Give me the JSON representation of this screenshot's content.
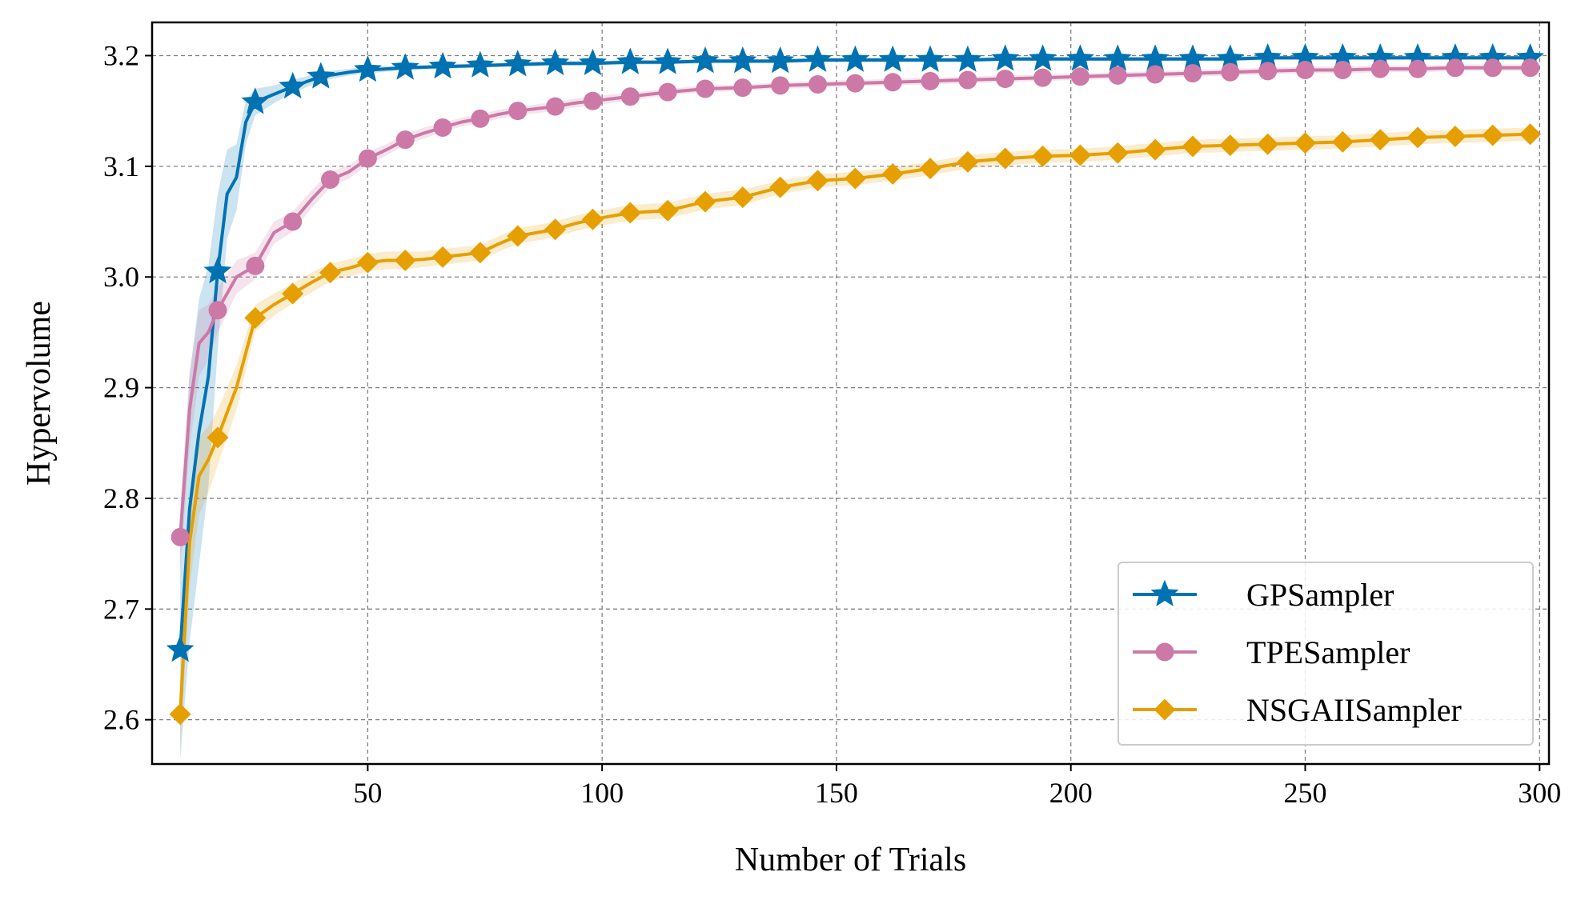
{
  "chart_data": {
    "type": "line",
    "title": "",
    "xlabel": "Number of Trials",
    "ylabel": "Hypervolume",
    "xlim": [
      4,
      302
    ],
    "ylim": [
      2.56,
      3.23
    ],
    "xticks": [
      50,
      100,
      150,
      200,
      250,
      300
    ],
    "yticks": [
      2.6,
      2.7,
      2.8,
      2.9,
      3.0,
      3.1,
      3.2
    ],
    "xtick_labels": [
      "50",
      "100",
      "150",
      "200",
      "250",
      "300"
    ],
    "ytick_labels": [
      "2.6",
      "2.7",
      "2.8",
      "2.9",
      "3.0",
      "3.1",
      "3.2"
    ],
    "grid": true,
    "legend_position": "lower-right",
    "series": [
      {
        "name": "GPSampler",
        "color": "#0072b2",
        "marker": "star",
        "x": [
          10,
          12,
          14,
          16,
          18,
          20,
          22,
          24,
          26,
          30,
          34,
          40,
          46,
          50,
          58,
          66,
          74,
          82,
          90,
          98,
          106,
          114,
          122,
          130,
          138,
          146,
          154,
          162,
          170,
          178,
          186,
          194,
          202,
          210,
          218,
          226,
          234,
          242,
          250,
          258,
          266,
          274,
          282,
          290,
          298
        ],
        "y": [
          2.663,
          2.79,
          2.86,
          2.91,
          3.005,
          3.075,
          3.09,
          3.14,
          3.158,
          3.165,
          3.172,
          3.181,
          3.185,
          3.187,
          3.189,
          3.19,
          3.191,
          3.192,
          3.193,
          3.193,
          3.194,
          3.194,
          3.195,
          3.195,
          3.195,
          3.196,
          3.196,
          3.196,
          3.196,
          3.196,
          3.197,
          3.197,
          3.197,
          3.197,
          3.197,
          3.197,
          3.197,
          3.198,
          3.198,
          3.198,
          3.198,
          3.198,
          3.198,
          3.198,
          3.198
        ],
        "band": [
          0.1,
          0.12,
          0.12,
          0.1,
          0.07,
          0.04,
          0.03,
          0.02,
          0.012,
          0.008,
          0.006,
          0.004,
          0.003,
          0.003,
          0.002,
          0.002,
          0.002,
          0.002,
          0.002,
          0.002,
          0.002,
          0.002,
          0.002,
          0.002,
          0.002,
          0.002,
          0.002,
          0.002,
          0.002,
          0.002,
          0.002,
          0.002,
          0.002,
          0.002,
          0.002,
          0.002,
          0.002,
          0.002,
          0.002,
          0.002,
          0.002,
          0.002,
          0.002,
          0.002,
          0.002
        ],
        "marker_every": [
          0,
          4,
          8,
          10,
          11,
          13,
          14,
          15,
          16,
          17,
          18,
          19,
          20,
          21,
          22,
          23,
          24,
          25,
          26,
          27,
          28,
          29,
          30,
          31,
          32,
          33,
          34,
          35,
          36,
          37,
          38,
          39,
          40,
          41,
          42,
          43,
          44
        ]
      },
      {
        "name": "TPESampler",
        "color": "#cc79a7",
        "marker": "circle",
        "x": [
          10,
          12,
          14,
          16,
          18,
          22,
          26,
          30,
          34,
          38,
          42,
          46,
          50,
          54,
          58,
          62,
          66,
          70,
          74,
          78,
          82,
          86,
          90,
          94,
          98,
          102,
          106,
          110,
          114,
          122,
          130,
          138,
          146,
          154,
          162,
          170,
          178,
          186,
          194,
          202,
          210,
          218,
          226,
          234,
          242,
          250,
          258,
          266,
          274,
          282,
          290,
          298
        ],
        "y": [
          2.765,
          2.88,
          2.94,
          2.95,
          2.97,
          3.0,
          3.01,
          3.04,
          3.05,
          3.07,
          3.088,
          3.095,
          3.107,
          3.115,
          3.124,
          3.13,
          3.135,
          3.14,
          3.143,
          3.147,
          3.15,
          3.152,
          3.154,
          3.157,
          3.159,
          3.161,
          3.163,
          3.165,
          3.167,
          3.17,
          3.171,
          3.173,
          3.174,
          3.175,
          3.176,
          3.177,
          3.178,
          3.179,
          3.18,
          3.181,
          3.182,
          3.183,
          3.184,
          3.185,
          3.186,
          3.187,
          3.187,
          3.188,
          3.188,
          3.189,
          3.189,
          3.189
        ],
        "band": [
          0.03,
          0.035,
          0.03,
          0.025,
          0.02,
          0.015,
          0.012,
          0.01,
          0.009,
          0.008,
          0.007,
          0.006,
          0.006,
          0.005,
          0.005,
          0.005,
          0.004,
          0.004,
          0.004,
          0.004,
          0.004,
          0.004,
          0.004,
          0.004,
          0.004,
          0.004,
          0.004,
          0.003,
          0.003,
          0.003,
          0.003,
          0.003,
          0.003,
          0.003,
          0.003,
          0.003,
          0.003,
          0.003,
          0.003,
          0.003,
          0.003,
          0.003,
          0.003,
          0.003,
          0.003,
          0.003,
          0.003,
          0.003,
          0.003,
          0.003,
          0.003,
          0.003
        ],
        "marker_every": [
          0,
          4,
          6,
          8,
          10,
          12,
          14,
          16,
          18,
          20,
          22,
          24,
          26,
          28,
          29,
          30,
          31,
          32,
          33,
          34,
          35,
          36,
          37,
          38,
          39,
          40,
          41,
          42,
          43,
          44,
          45,
          46,
          47,
          48,
          49,
          50,
          51
        ]
      },
      {
        "name": "NSGAIISampler",
        "color": "#e69f00",
        "marker": "diamond",
        "x": [
          10,
          12,
          14,
          16,
          18,
          22,
          26,
          30,
          34,
          38,
          42,
          46,
          50,
          54,
          58,
          62,
          66,
          70,
          74,
          78,
          82,
          86,
          90,
          94,
          98,
          102,
          106,
          110,
          114,
          122,
          130,
          138,
          146,
          154,
          162,
          170,
          178,
          186,
          194,
          202,
          210,
          218,
          226,
          234,
          242,
          250,
          258,
          266,
          274,
          282,
          290,
          298
        ],
        "y": [
          2.605,
          2.76,
          2.82,
          2.835,
          2.855,
          2.9,
          2.963,
          2.975,
          2.985,
          2.995,
          3.004,
          3.008,
          3.013,
          3.015,
          3.015,
          3.016,
          3.018,
          3.02,
          3.022,
          3.03,
          3.037,
          3.04,
          3.043,
          3.048,
          3.052,
          3.055,
          3.058,
          3.059,
          3.06,
          3.068,
          3.072,
          3.081,
          3.087,
          3.089,
          3.093,
          3.098,
          3.104,
          3.107,
          3.109,
          3.11,
          3.112,
          3.115,
          3.118,
          3.119,
          3.12,
          3.121,
          3.122,
          3.124,
          3.126,
          3.127,
          3.128,
          3.129
        ],
        "band": [
          0.03,
          0.04,
          0.035,
          0.03,
          0.025,
          0.02,
          0.012,
          0.01,
          0.009,
          0.009,
          0.008,
          0.008,
          0.008,
          0.008,
          0.008,
          0.007,
          0.007,
          0.007,
          0.007,
          0.007,
          0.007,
          0.007,
          0.007,
          0.007,
          0.007,
          0.007,
          0.007,
          0.007,
          0.007,
          0.007,
          0.007,
          0.006,
          0.006,
          0.006,
          0.006,
          0.006,
          0.006,
          0.006,
          0.006,
          0.006,
          0.006,
          0.006,
          0.006,
          0.006,
          0.006,
          0.006,
          0.006,
          0.006,
          0.006,
          0.006,
          0.006,
          0.006
        ],
        "marker_every": [
          0,
          4,
          6,
          8,
          10,
          12,
          14,
          16,
          18,
          20,
          22,
          24,
          26,
          28,
          29,
          30,
          31,
          32,
          33,
          34,
          35,
          36,
          37,
          38,
          39,
          40,
          41,
          42,
          43,
          44,
          45,
          46,
          47,
          48,
          49,
          50,
          51
        ]
      }
    ]
  }
}
